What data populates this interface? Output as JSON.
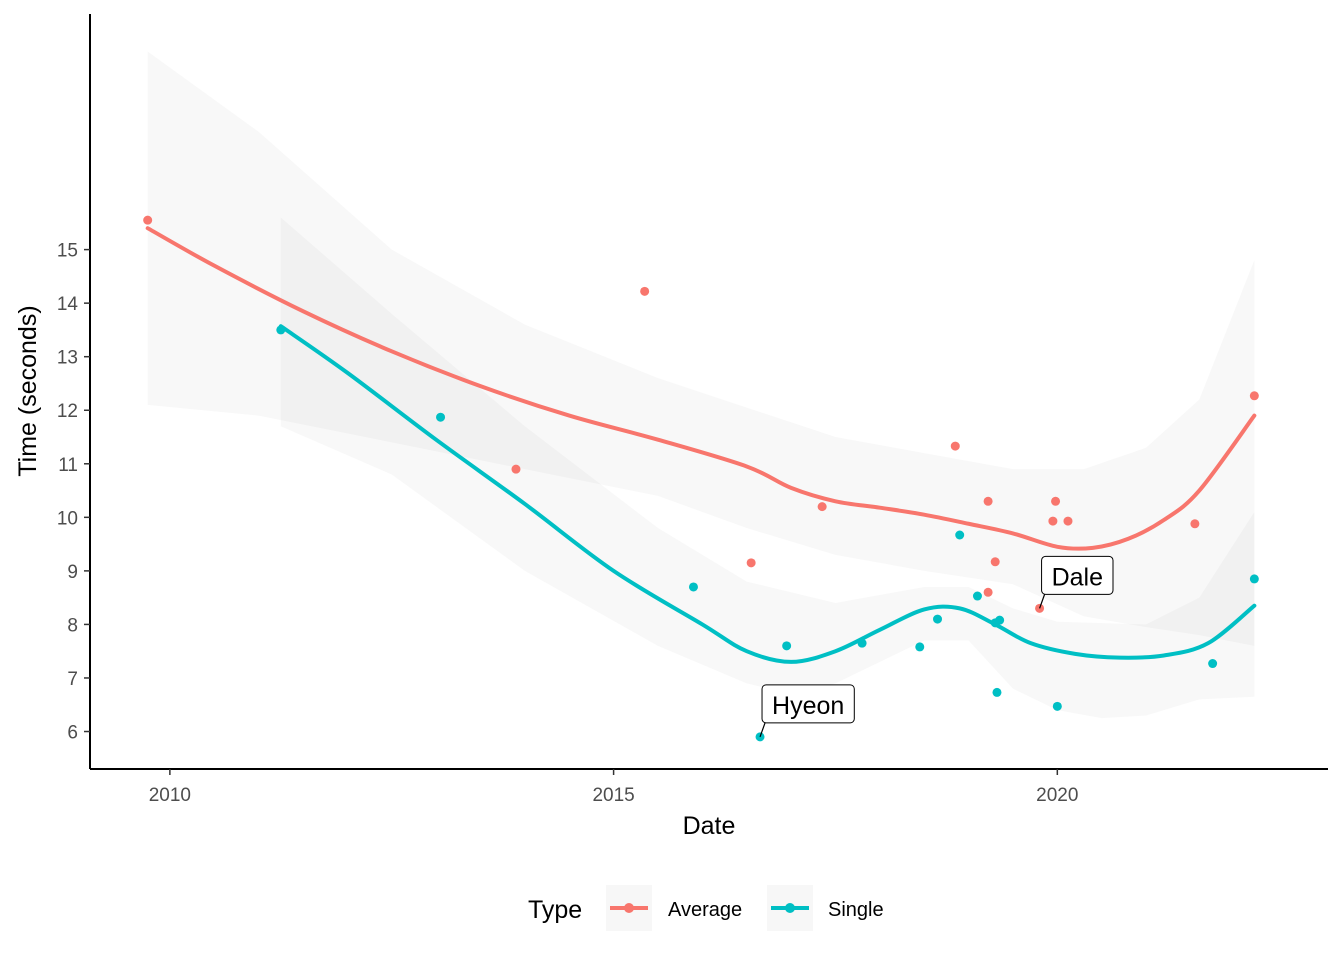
{
  "chart_data": {
    "type": "scatter",
    "xlabel": "Date",
    "ylabel": "Time (seconds)",
    "xlim": [
      2009.1,
      2023.05
    ],
    "ylim": [
      5.3,
      19.4
    ],
    "x_ticks": [
      2010,
      2015,
      2020
    ],
    "x_tick_labels": [
      "2010",
      "2015",
      "2020"
    ],
    "y_ticks": [
      6,
      7,
      8,
      9,
      10,
      11,
      12,
      13,
      14,
      15
    ],
    "y_tick_labels": [
      "6",
      "7",
      "8",
      "9",
      "10",
      "11",
      "12",
      "13",
      "14",
      "15"
    ],
    "grid": false,
    "legend": {
      "title": "Type",
      "position": "bottom"
    },
    "series": [
      {
        "name": "Average",
        "color": "#F8766D",
        "points": [
          [
            2009.75,
            15.55
          ],
          [
            2013.9,
            10.9
          ],
          [
            2015.35,
            14.22
          ],
          [
            2016.55,
            9.15
          ],
          [
            2017.35,
            10.2
          ],
          [
            2018.85,
            11.33
          ],
          [
            2019.22,
            10.3
          ],
          [
            2019.22,
            8.6
          ],
          [
            2019.3,
            9.17
          ],
          [
            2019.8,
            8.3
          ],
          [
            2019.95,
            9.93
          ],
          [
            2019.98,
            10.3
          ],
          [
            2020.12,
            9.93
          ],
          [
            2021.55,
            9.88
          ],
          [
            2022.22,
            12.27
          ]
        ],
        "smooth": [
          [
            2009.75,
            15.4
          ],
          [
            2010.5,
            14.7
          ],
          [
            2011.5,
            13.85
          ],
          [
            2012.5,
            13.1
          ],
          [
            2013.5,
            12.45
          ],
          [
            2014.5,
            11.9
          ],
          [
            2015.5,
            11.45
          ],
          [
            2016.5,
            10.95
          ],
          [
            2017.0,
            10.55
          ],
          [
            2017.5,
            10.3
          ],
          [
            2018.0,
            10.18
          ],
          [
            2018.5,
            10.05
          ],
          [
            2019.0,
            9.88
          ],
          [
            2019.5,
            9.7
          ],
          [
            2020.0,
            9.45
          ],
          [
            2020.4,
            9.43
          ],
          [
            2020.8,
            9.6
          ],
          [
            2021.2,
            9.95
          ],
          [
            2021.6,
            10.5
          ],
          [
            2022.22,
            11.9
          ]
        ],
        "band_upper": [
          [
            2009.75,
            18.7
          ],
          [
            2011.0,
            17.2
          ],
          [
            2012.5,
            15.0
          ],
          [
            2014.0,
            13.6
          ],
          [
            2015.5,
            12.6
          ],
          [
            2016.5,
            12.05
          ],
          [
            2017.5,
            11.5
          ],
          [
            2018.5,
            11.2
          ],
          [
            2019.5,
            10.9
          ],
          [
            2020.3,
            10.9
          ],
          [
            2021.0,
            11.3
          ],
          [
            2021.6,
            12.2
          ],
          [
            2022.22,
            14.8
          ]
        ],
        "band_lower": [
          [
            2009.75,
            12.1
          ],
          [
            2011.0,
            11.9
          ],
          [
            2012.5,
            11.4
          ],
          [
            2014.0,
            10.9
          ],
          [
            2015.5,
            10.4
          ],
          [
            2016.5,
            9.8
          ],
          [
            2017.5,
            9.3
          ],
          [
            2018.5,
            9.0
          ],
          [
            2019.5,
            8.75
          ],
          [
            2020.3,
            8.15
          ],
          [
            2021.0,
            7.95
          ],
          [
            2021.6,
            7.8
          ],
          [
            2022.22,
            7.6
          ]
        ]
      },
      {
        "name": "Single",
        "color": "#00BFC4",
        "points": [
          [
            2011.25,
            13.5
          ],
          [
            2013.05,
            11.87
          ],
          [
            2015.9,
            8.7
          ],
          [
            2016.65,
            5.9
          ],
          [
            2016.95,
            7.6
          ],
          [
            2017.8,
            7.65
          ],
          [
            2018.45,
            7.58
          ],
          [
            2018.65,
            8.1
          ],
          [
            2018.9,
            9.67
          ],
          [
            2019.1,
            8.53
          ],
          [
            2019.3,
            8.03
          ],
          [
            2019.35,
            8.08
          ],
          [
            2019.32,
            6.73
          ],
          [
            2020.0,
            6.47
          ],
          [
            2021.75,
            7.27
          ],
          [
            2022.22,
            8.85
          ]
        ],
        "smooth": [
          [
            2011.25,
            13.57
          ],
          [
            2012.0,
            12.7
          ],
          [
            2013.0,
            11.45
          ],
          [
            2014.0,
            10.25
          ],
          [
            2015.0,
            9.0
          ],
          [
            2016.0,
            8.0
          ],
          [
            2016.5,
            7.5
          ],
          [
            2017.0,
            7.3
          ],
          [
            2017.5,
            7.5
          ],
          [
            2018.0,
            7.9
          ],
          [
            2018.5,
            8.28
          ],
          [
            2018.9,
            8.3
          ],
          [
            2019.3,
            8.0
          ],
          [
            2019.7,
            7.65
          ],
          [
            2020.2,
            7.45
          ],
          [
            2020.7,
            7.38
          ],
          [
            2021.2,
            7.42
          ],
          [
            2021.7,
            7.65
          ],
          [
            2022.22,
            8.35
          ]
        ],
        "band_upper": [
          [
            2011.25,
            15.6
          ],
          [
            2012.5,
            13.8
          ],
          [
            2014.0,
            11.7
          ],
          [
            2015.5,
            9.8
          ],
          [
            2016.5,
            8.8
          ],
          [
            2017.5,
            8.4
          ],
          [
            2018.5,
            8.7
          ],
          [
            2019.0,
            8.7
          ],
          [
            2019.5,
            8.3
          ],
          [
            2020.0,
            8.05
          ],
          [
            2021.0,
            8.0
          ],
          [
            2021.6,
            8.5
          ],
          [
            2022.22,
            10.1
          ]
        ],
        "band_lower": [
          [
            2011.25,
            11.7
          ],
          [
            2012.5,
            10.8
          ],
          [
            2014.0,
            9.0
          ],
          [
            2015.5,
            7.6
          ],
          [
            2016.5,
            6.9
          ],
          [
            2017.0,
            6.7
          ],
          [
            2017.5,
            6.9
          ],
          [
            2018.5,
            7.7
          ],
          [
            2019.0,
            7.7
          ],
          [
            2019.5,
            6.8
          ],
          [
            2020.0,
            6.4
          ],
          [
            2020.5,
            6.25
          ],
          [
            2021.0,
            6.3
          ],
          [
            2021.6,
            6.6
          ],
          [
            2022.22,
            6.65
          ]
        ]
      }
    ],
    "annotations": [
      {
        "text": "Hyeon",
        "x": 2016.65,
        "y": 5.9
      },
      {
        "text": "Dale",
        "x": 2019.8,
        "y": 8.3
      }
    ]
  }
}
